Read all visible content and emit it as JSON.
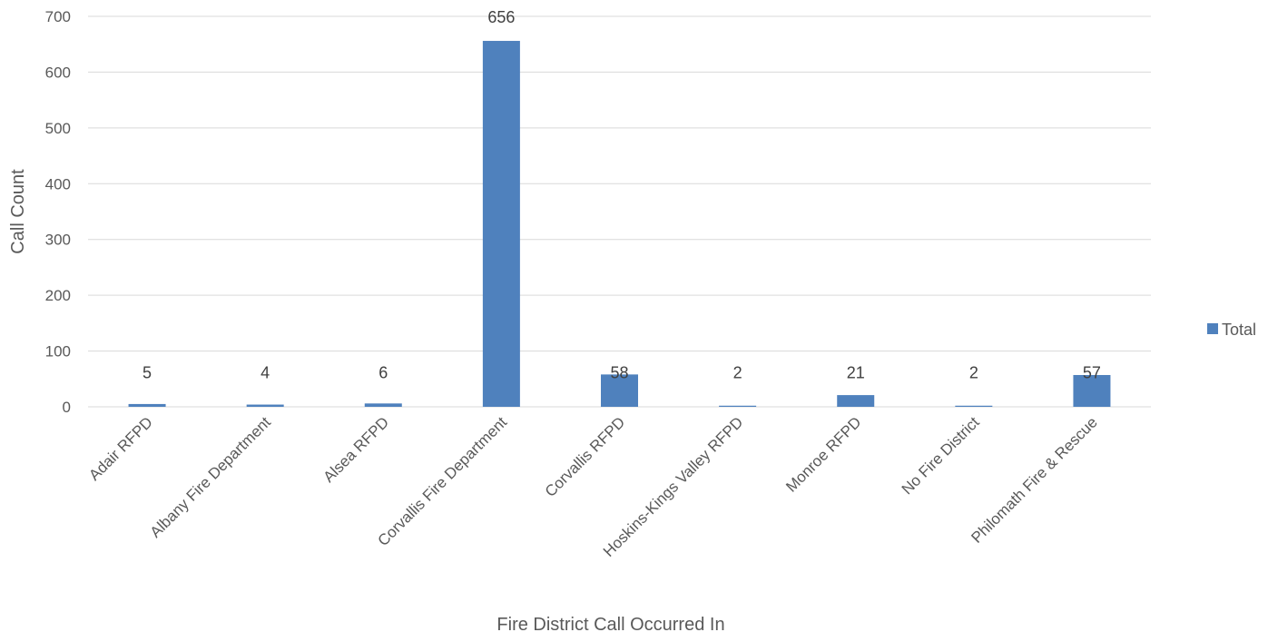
{
  "chart_data": {
    "type": "bar",
    "title": "",
    "xlabel": "Fire District Call Occurred In",
    "ylabel": "Call Count",
    "ylim": [
      0,
      700
    ],
    "yticks": [
      0,
      100,
      200,
      300,
      400,
      500,
      600,
      700
    ],
    "grid": true,
    "legend_position": "right",
    "categories": [
      "Adair RFPD",
      "Albany Fire Department",
      "Alsea RFPD",
      "Corvallis Fire Department",
      "Corvallis RFPD",
      "Hoskins-Kings Valley RFPD",
      "Monroe RFPD",
      "No Fire District",
      "Philomath Fire & Rescue"
    ],
    "series": [
      {
        "name": "Total",
        "color": "#4f81bd",
        "values": [
          5,
          4,
          6,
          656,
          58,
          2,
          21,
          2,
          57
        ]
      }
    ]
  }
}
